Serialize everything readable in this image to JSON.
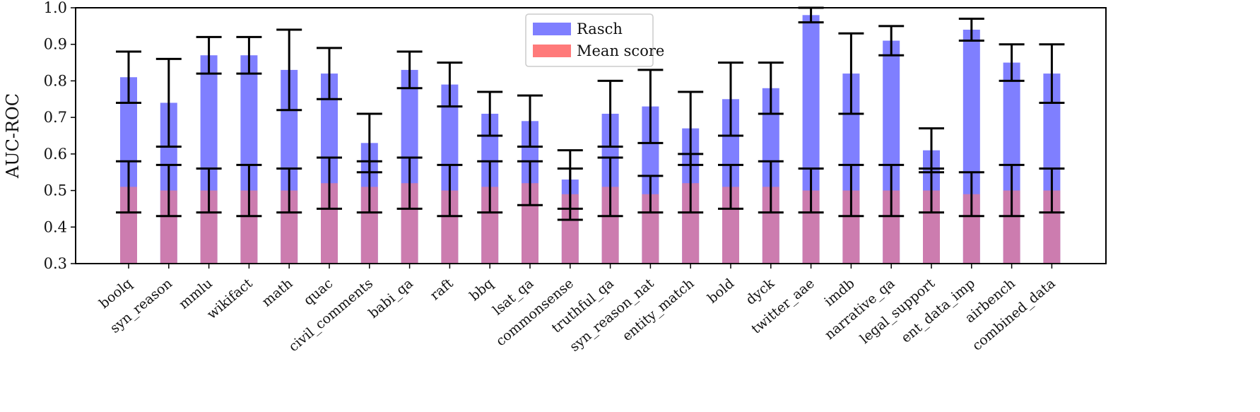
{
  "chart_data": {
    "type": "bar",
    "ylabel": "AUC-ROC",
    "ylim": [
      0.3,
      1.0
    ],
    "yticks": [
      "0.3",
      "0.4",
      "0.5",
      "0.6",
      "0.7",
      "0.8",
      "0.9",
      "1.0"
    ],
    "legend_position": "top-center",
    "grid": false,
    "categories": [
      "boolq",
      "syn_reason",
      "mmlu",
      "wikifact",
      "math",
      "quac",
      "civil_comments",
      "babi_qa",
      "raft",
      "bbq",
      "lsat_qa",
      "commonsense",
      "truthful_qa",
      "syn_reason_nat",
      "entity_match",
      "bold",
      "dyck",
      "twitter_aae",
      "imdb",
      "narrative_qa",
      "legal_support",
      "ent_data_imp",
      "airbench",
      "combined_data"
    ],
    "series": [
      {
        "name": "Rasch",
        "color": "#7f7fff",
        "values": [
          0.81,
          0.74,
          0.87,
          0.87,
          0.83,
          0.82,
          0.63,
          0.83,
          0.79,
          0.71,
          0.69,
          0.53,
          0.71,
          0.73,
          0.67,
          0.75,
          0.78,
          0.98,
          0.82,
          0.91,
          0.61,
          0.94,
          0.85,
          0.82
        ],
        "err_low": [
          0.74,
          0.62,
          0.82,
          0.82,
          0.72,
          0.75,
          0.55,
          0.78,
          0.73,
          0.65,
          0.62,
          0.45,
          0.62,
          0.63,
          0.57,
          0.65,
          0.71,
          0.96,
          0.71,
          0.87,
          0.55,
          0.91,
          0.8,
          0.74
        ],
        "err_high": [
          0.88,
          0.86,
          0.92,
          0.92,
          0.94,
          0.89,
          0.71,
          0.88,
          0.85,
          0.77,
          0.76,
          0.61,
          0.8,
          0.83,
          0.77,
          0.85,
          0.85,
          1.0,
          0.93,
          0.95,
          0.67,
          0.97,
          0.9,
          0.9
        ]
      },
      {
        "name": "Mean score",
        "color": "#ff7a7a",
        "values": [
          0.51,
          0.5,
          0.5,
          0.5,
          0.5,
          0.52,
          0.51,
          0.52,
          0.5,
          0.51,
          0.52,
          0.49,
          0.51,
          0.49,
          0.52,
          0.51,
          0.51,
          0.5,
          0.5,
          0.5,
          0.5,
          0.49,
          0.5,
          0.5
        ],
        "err_low": [
          0.44,
          0.43,
          0.44,
          0.43,
          0.44,
          0.45,
          0.44,
          0.45,
          0.43,
          0.44,
          0.46,
          0.42,
          0.43,
          0.44,
          0.44,
          0.45,
          0.44,
          0.44,
          0.43,
          0.43,
          0.44,
          0.43,
          0.43,
          0.44
        ],
        "err_high": [
          0.58,
          0.57,
          0.56,
          0.57,
          0.56,
          0.59,
          0.58,
          0.59,
          0.57,
          0.58,
          0.58,
          0.56,
          0.59,
          0.54,
          0.6,
          0.57,
          0.58,
          0.56,
          0.57,
          0.57,
          0.56,
          0.55,
          0.57,
          0.56
        ]
      }
    ]
  }
}
